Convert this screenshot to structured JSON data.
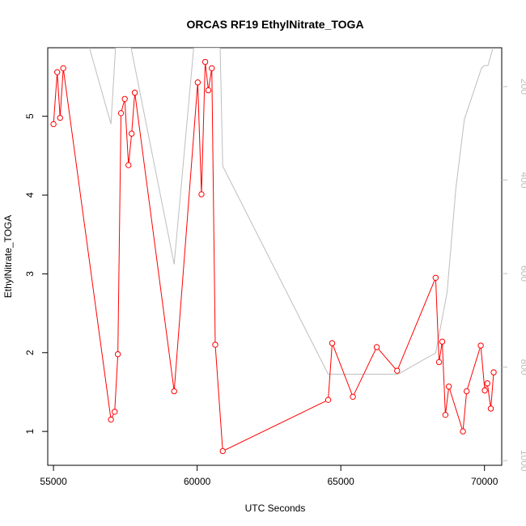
{
  "chart_data": {
    "type": "line",
    "title": "ORCAS RF19 EthylNitrate_TOGA",
    "xlabel": "UTC Seconds",
    "ylabel": "EthylNitrate_TOGA",
    "xlim": [
      54800,
      70600
    ],
    "ylim": [
      0.57,
      5.87
    ],
    "x_ticks": [
      55000,
      60000,
      65000,
      70000
    ],
    "y_ticks": [
      1,
      2,
      3,
      4,
      5
    ],
    "y2_ticks": [
      200,
      400,
      600,
      800,
      1000
    ],
    "y2_lim": [
      1010,
      117
    ],
    "y2_reversed": true,
    "grid": false,
    "series": [
      {
        "color": "#ff0000",
        "marker": "open-circle",
        "points": [
          [
            55000,
            4.9
          ],
          [
            55130,
            5.56
          ],
          [
            55230,
            4.98
          ],
          [
            55340,
            5.61
          ],
          [
            57000,
            1.15
          ],
          [
            57130,
            1.25
          ],
          [
            57240,
            1.98
          ],
          [
            57350,
            5.04
          ],
          [
            57480,
            5.22
          ],
          [
            57610,
            4.38
          ],
          [
            57720,
            4.78
          ],
          [
            57830,
            5.3
          ],
          [
            59200,
            1.51
          ],
          [
            60020,
            5.43
          ],
          [
            60150,
            4.01
          ],
          [
            60280,
            5.69
          ],
          [
            60390,
            5.33
          ],
          [
            60510,
            5.61
          ],
          [
            60630,
            2.1
          ],
          [
            60890,
            0.75
          ],
          [
            64560,
            1.4
          ],
          [
            64700,
            2.12
          ],
          [
            65420,
            1.44
          ],
          [
            66250,
            2.07
          ],
          [
            66960,
            1.77
          ],
          [
            68300,
            2.95
          ],
          [
            68420,
            1.88
          ],
          [
            68530,
            2.14
          ],
          [
            68640,
            1.21
          ],
          [
            68760,
            1.57
          ],
          [
            69250,
            1.0
          ],
          [
            69380,
            1.51
          ],
          [
            69870,
            2.09
          ],
          [
            70010,
            1.52
          ],
          [
            70100,
            1.61
          ],
          [
            70220,
            1.29
          ],
          [
            70320,
            1.75
          ]
        ]
      },
      {
        "color": "#bebebe",
        "marker": "none",
        "axis": "right",
        "points": [
          [
            56250,
            117
          ],
          [
            57000,
            280
          ],
          [
            57160,
            117
          ],
          [
            57700,
            117
          ],
          [
            59200,
            580
          ],
          [
            59880,
            117
          ],
          [
            60800,
            117
          ],
          [
            60890,
            370
          ],
          [
            64560,
            815
          ],
          [
            65000,
            815
          ],
          [
            66000,
            815
          ],
          [
            67000,
            815
          ],
          [
            68000,
            780
          ],
          [
            68300,
            770
          ],
          [
            68700,
            640
          ],
          [
            69000,
            420
          ],
          [
            69300,
            270
          ],
          [
            69900,
            160
          ],
          [
            70000,
            155
          ],
          [
            70120,
            155
          ],
          [
            70300,
            117
          ]
        ]
      }
    ]
  }
}
